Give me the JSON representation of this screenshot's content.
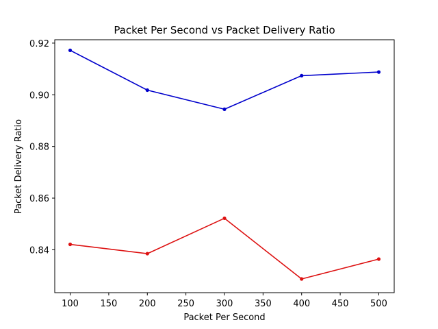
{
  "chart_data": {
    "type": "line",
    "title": "Packet Per Second vs Packet Delivery Ratio",
    "xlabel": "Packet Per Second",
    "ylabel": "Packet Delivery Ratio",
    "x": [
      100,
      200,
      300,
      400,
      500
    ],
    "xlim": [
      80,
      520
    ],
    "ylim": [
      0.8234,
      0.9213
    ],
    "xticks": [
      100,
      150,
      200,
      250,
      300,
      350,
      400,
      450,
      500
    ],
    "yticks": [
      0.84,
      0.86,
      0.88,
      0.9,
      0.92
    ],
    "ytick_labels": [
      "0.84",
      "0.86",
      "0.88",
      "0.90",
      "0.92"
    ],
    "grid": false,
    "series": [
      {
        "color": "#0000cc",
        "marker": "circle",
        "values": [
          0.9172,
          0.9018,
          0.8944,
          0.9074,
          0.9088
        ]
      },
      {
        "color": "#dd1111",
        "marker": "circle",
        "values": [
          0.8421,
          0.8385,
          0.8522,
          0.8287,
          0.8364
        ]
      }
    ]
  }
}
